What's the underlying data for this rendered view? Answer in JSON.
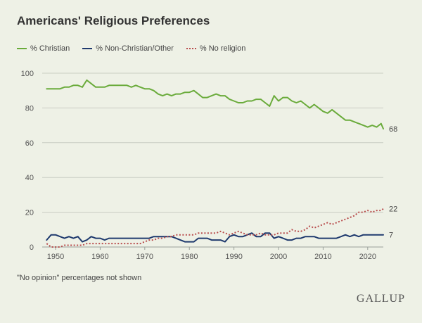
{
  "chart_data": {
    "type": "line",
    "title": "Americans' Religious Preferences",
    "xlabel": "",
    "ylabel": "",
    "xlim": [
      1947,
      2023.5
    ],
    "ylim": [
      0,
      100
    ],
    "xticks": [
      1950,
      1960,
      1970,
      1980,
      1990,
      2000,
      2010,
      2020
    ],
    "yticks": [
      0,
      20,
      40,
      60,
      80,
      100
    ],
    "grid": true,
    "legend_position": "top-left",
    "series": [
      {
        "name": "% Christian",
        "color": "#6aab3b",
        "style": "solid",
        "end_label": "68",
        "points": [
          [
            1948,
            91
          ],
          [
            1950,
            91
          ],
          [
            1951,
            91
          ],
          [
            1952,
            92
          ],
          [
            1953,
            92
          ],
          [
            1954,
            93
          ],
          [
            1955,
            93
          ],
          [
            1956,
            92
          ],
          [
            1957,
            96
          ],
          [
            1958,
            94
          ],
          [
            1959,
            92
          ],
          [
            1960,
            92
          ],
          [
            1961,
            92
          ],
          [
            1962,
            93
          ],
          [
            1963,
            93
          ],
          [
            1964,
            93
          ],
          [
            1965,
            93
          ],
          [
            1966,
            93
          ],
          [
            1967,
            92
          ],
          [
            1968,
            93
          ],
          [
            1969,
            92
          ],
          [
            1970,
            91
          ],
          [
            1971,
            91
          ],
          [
            1972,
            90
          ],
          [
            1973,
            88
          ],
          [
            1974,
            87
          ],
          [
            1975,
            88
          ],
          [
            1976,
            87
          ],
          [
            1977,
            88
          ],
          [
            1978,
            88
          ],
          [
            1979,
            89
          ],
          [
            1980,
            89
          ],
          [
            1981,
            90
          ],
          [
            1982,
            88
          ],
          [
            1983,
            86
          ],
          [
            1984,
            86
          ],
          [
            1985,
            87
          ],
          [
            1986,
            88
          ],
          [
            1987,
            87
          ],
          [
            1988,
            87
          ],
          [
            1989,
            85
          ],
          [
            1990,
            84
          ],
          [
            1991,
            83
          ],
          [
            1992,
            83
          ],
          [
            1993,
            84
          ],
          [
            1994,
            84
          ],
          [
            1995,
            85
          ],
          [
            1996,
            85
          ],
          [
            1997,
            83
          ],
          [
            1998,
            81
          ],
          [
            1999,
            87
          ],
          [
            2000,
            84
          ],
          [
            2001,
            86
          ],
          [
            2002,
            86
          ],
          [
            2003,
            84
          ],
          [
            2004,
            83
          ],
          [
            2005,
            84
          ],
          [
            2006,
            82
          ],
          [
            2007,
            80
          ],
          [
            2008,
            82
          ],
          [
            2009,
            80
          ],
          [
            2010,
            78
          ],
          [
            2011,
            77
          ],
          [
            2012,
            79
          ],
          [
            2013,
            77
          ],
          [
            2014,
            75
          ],
          [
            2015,
            73
          ],
          [
            2016,
            73
          ],
          [
            2017,
            72
          ],
          [
            2018,
            71
          ],
          [
            2019,
            70
          ],
          [
            2020,
            69
          ],
          [
            2021,
            70
          ],
          [
            2022,
            69
          ],
          [
            2023,
            71
          ],
          [
            2023.5,
            68
          ]
        ]
      },
      {
        "name": "% Non-Christian/Other",
        "color": "#1f3a6e",
        "style": "solid",
        "end_label": "7",
        "points": [
          [
            1948,
            4
          ],
          [
            1949,
            7
          ],
          [
            1950,
            7
          ],
          [
            1951,
            6
          ],
          [
            1952,
            5
          ],
          [
            1953,
            6
          ],
          [
            1954,
            5
          ],
          [
            1955,
            6
          ],
          [
            1956,
            3
          ],
          [
            1957,
            4
          ],
          [
            1958,
            6
          ],
          [
            1959,
            5
          ],
          [
            1960,
            5
          ],
          [
            1961,
            4
          ],
          [
            1962,
            5
          ],
          [
            1963,
            5
          ],
          [
            1964,
            5
          ],
          [
            1965,
            5
          ],
          [
            1966,
            5
          ],
          [
            1967,
            5
          ],
          [
            1968,
            5
          ],
          [
            1969,
            5
          ],
          [
            1970,
            5
          ],
          [
            1971,
            5
          ],
          [
            1972,
            6
          ],
          [
            1973,
            6
          ],
          [
            1974,
            6
          ],
          [
            1975,
            6
          ],
          [
            1976,
            6
          ],
          [
            1977,
            5
          ],
          [
            1978,
            4
          ],
          [
            1979,
            3
          ],
          [
            1980,
            3
          ],
          [
            1981,
            3
          ],
          [
            1982,
            5
          ],
          [
            1983,
            5
          ],
          [
            1984,
            5
          ],
          [
            1985,
            4
          ],
          [
            1986,
            4
          ],
          [
            1987,
            4
          ],
          [
            1988,
            3
          ],
          [
            1989,
            6
          ],
          [
            1990,
            7
          ],
          [
            1991,
            6
          ],
          [
            1992,
            6
          ],
          [
            1993,
            7
          ],
          [
            1994,
            8
          ],
          [
            1995,
            6
          ],
          [
            1996,
            6
          ],
          [
            1997,
            8
          ],
          [
            1998,
            8
          ],
          [
            1999,
            5
          ],
          [
            2000,
            6
          ],
          [
            2001,
            5
          ],
          [
            2002,
            4
          ],
          [
            2003,
            4
          ],
          [
            2004,
            5
          ],
          [
            2005,
            5
          ],
          [
            2006,
            6
          ],
          [
            2007,
            6
          ],
          [
            2008,
            6
          ],
          [
            2009,
            5
          ],
          [
            2010,
            5
          ],
          [
            2011,
            5
          ],
          [
            2012,
            5
          ],
          [
            2013,
            5
          ],
          [
            2014,
            6
          ],
          [
            2015,
            7
          ],
          [
            2016,
            6
          ],
          [
            2017,
            7
          ],
          [
            2018,
            6
          ],
          [
            2019,
            7
          ],
          [
            2020,
            7
          ],
          [
            2021,
            7
          ],
          [
            2022,
            7
          ],
          [
            2023,
            7
          ],
          [
            2023.5,
            7
          ]
        ]
      },
      {
        "name": "% No religion",
        "color": "#b84d4d",
        "style": "dotted",
        "end_label": "22",
        "points": [
          [
            1948,
            2
          ],
          [
            1949,
            0
          ],
          [
            1950,
            0
          ],
          [
            1951,
            0
          ],
          [
            1952,
            1
          ],
          [
            1953,
            1
          ],
          [
            1954,
            1
          ],
          [
            1955,
            1
          ],
          [
            1956,
            1
          ],
          [
            1957,
            2
          ],
          [
            1958,
            2
          ],
          [
            1959,
            2
          ],
          [
            1960,
            2
          ],
          [
            1961,
            2
          ],
          [
            1962,
            2
          ],
          [
            1963,
            2
          ],
          [
            1964,
            2
          ],
          [
            1965,
            2
          ],
          [
            1966,
            2
          ],
          [
            1967,
            2
          ],
          [
            1968,
            2
          ],
          [
            1969,
            2
          ],
          [
            1970,
            3
          ],
          [
            1971,
            4
          ],
          [
            1972,
            4
          ],
          [
            1973,
            5
          ],
          [
            1974,
            5
          ],
          [
            1975,
            6
          ],
          [
            1976,
            6
          ],
          [
            1977,
            7
          ],
          [
            1978,
            7
          ],
          [
            1979,
            7
          ],
          [
            1980,
            7
          ],
          [
            1981,
            7
          ],
          [
            1982,
            8
          ],
          [
            1983,
            8
          ],
          [
            1984,
            8
          ],
          [
            1985,
            8
          ],
          [
            1986,
            8
          ],
          [
            1987,
            9
          ],
          [
            1988,
            8
          ],
          [
            1989,
            7
          ],
          [
            1990,
            8
          ],
          [
            1991,
            9
          ],
          [
            1992,
            8
          ],
          [
            1993,
            7
          ],
          [
            1994,
            7
          ],
          [
            1995,
            7
          ],
          [
            1996,
            8
          ],
          [
            1997,
            7
          ],
          [
            1998,
            7
          ],
          [
            1999,
            7
          ],
          [
            2000,
            8
          ],
          [
            2001,
            8
          ],
          [
            2002,
            8
          ],
          [
            2003,
            10
          ],
          [
            2004,
            9
          ],
          [
            2005,
            9
          ],
          [
            2006,
            10
          ],
          [
            2007,
            12
          ],
          [
            2008,
            11
          ],
          [
            2009,
            12
          ],
          [
            2010,
            13
          ],
          [
            2011,
            14
          ],
          [
            2012,
            13
          ],
          [
            2013,
            14
          ],
          [
            2014,
            15
          ],
          [
            2015,
            16
          ],
          [
            2016,
            17
          ],
          [
            2017,
            18
          ],
          [
            2018,
            20
          ],
          [
            2019,
            20
          ],
          [
            2020,
            21
          ],
          [
            2021,
            20
          ],
          [
            2022,
            21
          ],
          [
            2023,
            21
          ],
          [
            2023.5,
            22
          ]
        ]
      }
    ]
  },
  "legend": {
    "items": [
      {
        "label": "% Christian"
      },
      {
        "label": "% Non-Christian/Other"
      },
      {
        "label": "% No religion"
      }
    ]
  },
  "footnote": "\"No opinion\" percentages not shown",
  "brand": "GALLUP"
}
